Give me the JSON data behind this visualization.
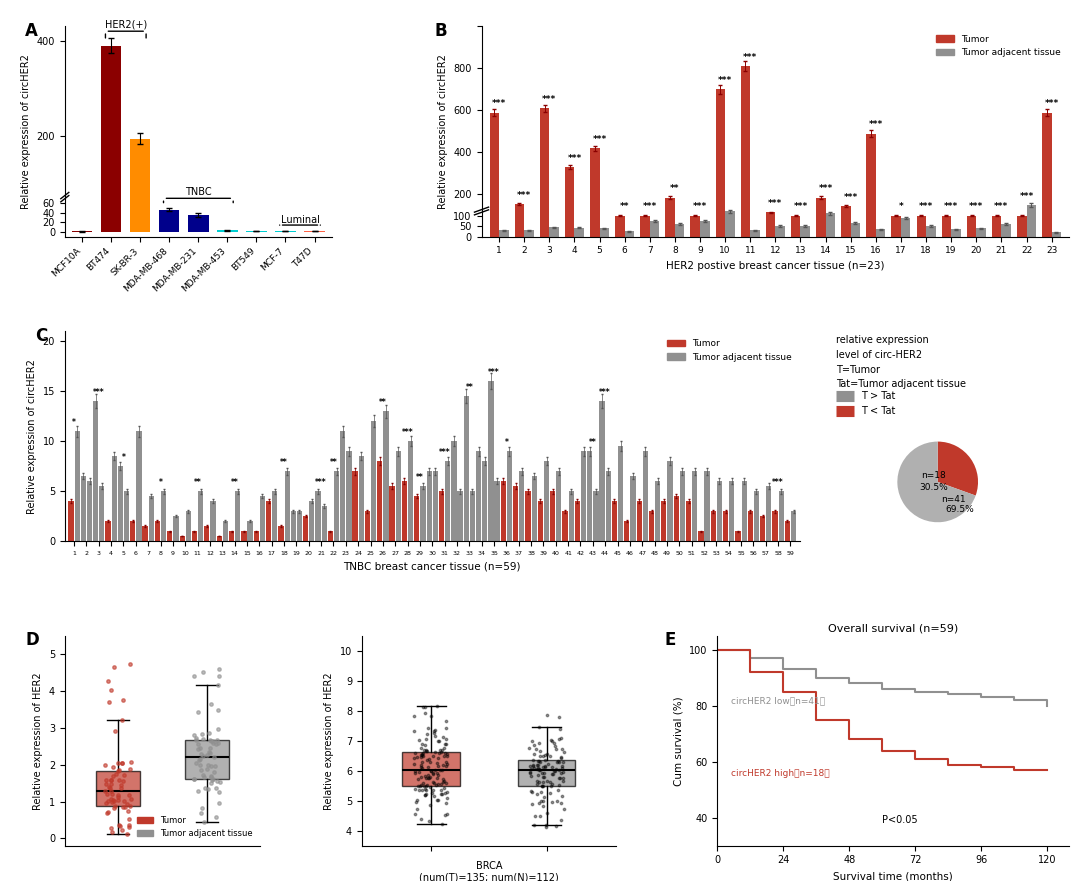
{
  "panel_A": {
    "categories": [
      "MCF10A",
      "BT474",
      "SK-BR-3",
      "MDA-MB-468",
      "MDA-MB-231",
      "MDA-MB-453",
      "BT549",
      "MCF-7",
      "T47D"
    ],
    "values": [
      1,
      390,
      195,
      46,
      35,
      3,
      2,
      1.5,
      1
    ],
    "errors": [
      0.5,
      15,
      12,
      3,
      4,
      0.5,
      0.3,
      0.3,
      0.2
    ],
    "colors": [
      "#8B0000",
      "#8B0000",
      "#FF8C00",
      "#00008B",
      "#00008B",
      "#00CED1",
      "#00CED1",
      "#00CED1",
      "#FF6347"
    ],
    "ylabel": "Relative expression of circHER2",
    "groups": {
      "HER2(+)": [
        1,
        2
      ],
      "TNBC": [
        3,
        4,
        5
      ],
      "Luminal": [
        7,
        8
      ]
    }
  },
  "panel_B": {
    "tumor_values": [
      590,
      155,
      610,
      330,
      420,
      100,
      100,
      185,
      100,
      700,
      810,
      115,
      100,
      185,
      145,
      490,
      100,
      100,
      100,
      100,
      100,
      100,
      590
    ],
    "adjacent_values": [
      30,
      30,
      45,
      42,
      40,
      25,
      75,
      60,
      75,
      120,
      30,
      50,
      50,
      110,
      65,
      35,
      90,
      50,
      35,
      40,
      60,
      150,
      20
    ],
    "significance": [
      "***",
      "***",
      "***",
      "***",
      "***",
      "**",
      "***",
      "**",
      "***",
      "***",
      "***",
      "***",
      "***",
      "***",
      "***",
      "***",
      "*",
      "***",
      "***",
      "***",
      "***",
      "***",
      "***"
    ],
    "xlabel": "HER2 postive breast cancer tissue (n=23)",
    "ylabel": "Relative expression of circHER2"
  },
  "panel_C": {
    "tumor_red": [
      4,
      6.5,
      14,
      2,
      7.5,
      2,
      1.5,
      2,
      1,
      0.5,
      1,
      1.5,
      0.5,
      1,
      1,
      1,
      4,
      1.5,
      3,
      2.5,
      5,
      1,
      11,
      7,
      3,
      8,
      5.5,
      6,
      4.5,
      7,
      5,
      10,
      14.5,
      9,
      16,
      6,
      5.5,
      5,
      4,
      5,
      3,
      4,
      9,
      14,
      4,
      2,
      4,
      3,
      4,
      4.5,
      4,
      1,
      3,
      3,
      1,
      3,
      2.5,
      3,
      2
    ],
    "adjacent_gray": [
      11,
      6,
      5.5,
      8.5,
      5,
      11,
      4.5,
      5,
      2.5,
      3,
      5,
      4,
      2,
      5,
      2,
      4.5,
      5,
      7,
      3,
      4,
      3.5,
      7,
      9,
      8.5,
      12,
      13,
      9,
      10,
      5.5,
      7,
      8,
      5,
      5,
      8,
      6,
      9,
      7,
      6.5,
      8,
      7,
      5,
      9,
      5,
      7,
      9.5,
      6.5,
      9,
      6,
      8,
      7,
      7,
      7,
      6,
      6,
      6,
      5,
      5.5,
      5,
      3
    ],
    "sig": [
      "*",
      "",
      "***",
      "",
      "*",
      "",
      "",
      "*",
      "",
      "",
      "**",
      "",
      "",
      "**",
      "",
      "",
      "",
      "**",
      "",
      "",
      "***",
      "**",
      "",
      "",
      "",
      "**",
      "",
      "***",
      "**",
      "",
      "***",
      "",
      "**",
      "",
      "***",
      "*",
      "",
      "",
      "",
      "",
      "",
      "",
      "**",
      "***",
      "",
      "",
      "",
      "",
      "",
      "",
      "",
      "",
      "",
      "",
      "",
      "",
      "",
      "***"
    ],
    "xlabel": "TNBC breast cancer tissue (n=59)",
    "ylabel": "Relative expression of circHER2",
    "pie_sizes": [
      30.5,
      69.5
    ],
    "pie_colors": [
      "#C0392B",
      "#B0B0B0"
    ],
    "pie_labels": [
      "n=18\n30.5%",
      "n=41\n69.5%"
    ]
  },
  "panel_D1": {
    "tumor_median": 1.4,
    "tumor_q1": 0.8,
    "tumor_q3": 2.1,
    "tumor_whisker_low": 0.1,
    "tumor_whisker_high": 4.8,
    "adj_median": 2.3,
    "adj_q1": 1.5,
    "adj_q3": 3.0,
    "adj_whisker_low": 0.3,
    "adj_whisker_high": 4.7,
    "ylabel": "Relative expression of HER2",
    "xlabel": "",
    "labels": [
      "Tumor",
      "Tumor adjacent tissue"
    ]
  },
  "panel_D2": {
    "tumor_median": 6.0,
    "tumor_q1": 5.5,
    "tumor_q3": 6.6,
    "tumor_whisker_low": 4.3,
    "tumor_whisker_high": 8.0,
    "adj_median": 6.1,
    "adj_q1": 5.6,
    "adj_q3": 6.7,
    "adj_whisker_low": 4.2,
    "adj_whisker_high": 7.8,
    "ylabel": "Relative expression of HER2",
    "xlabel": "BRCA\n(num(T)=135; num(N)=112)"
  },
  "panel_E": {
    "time": [
      0,
      24,
      48,
      72,
      96,
      120
    ],
    "low_survival": [
      100,
      95,
      90,
      85,
      82,
      80
    ],
    "high_survival": [
      100,
      88,
      72,
      65,
      60,
      57
    ],
    "title": "Overall survival (n=59)",
    "xlabel": "Survival time (months)",
    "ylabel": "Cum survival (%)"
  },
  "colors": {
    "red": "#C0392B",
    "dark_red": "#8B0000",
    "gray": "#909090",
    "orange": "#E67E22",
    "dark_blue": "#00008B",
    "cyan": "#00CED1",
    "light_red": "#E74C3C"
  }
}
